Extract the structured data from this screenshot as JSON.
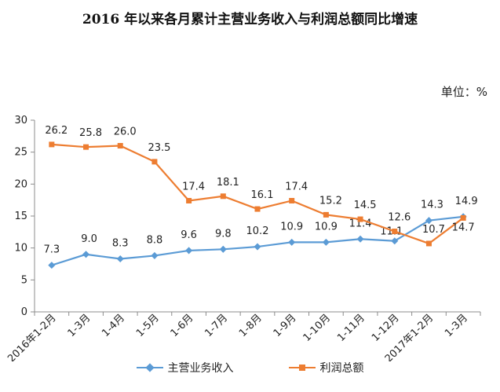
{
  "title": "2016 年以来各月累计主营业务收入与利润总额同比增速",
  "unit": "单位：%",
  "chart_data": {
    "type": "line",
    "categories": [
      "2016年1-2月",
      "1-3月",
      "1-4月",
      "1-5月",
      "1-6月",
      "1-7月",
      "1-8月",
      "1-9月",
      "1-10月",
      "1-11月",
      "1-12月",
      "2017年1-2月",
      "1-3月"
    ],
    "ylim": [
      0,
      30
    ],
    "yticks": [
      0,
      5,
      10,
      15,
      20,
      25,
      30
    ],
    "grid": false,
    "legend_position": "bottom",
    "series": [
      {
        "name": "主营业务收入",
        "color": "#5b9bd5",
        "marker": "diamond",
        "values": [
          7.3,
          9.0,
          8.3,
          8.8,
          9.6,
          9.8,
          10.2,
          10.9,
          10.9,
          11.4,
          11.1,
          14.3,
          14.9
        ],
        "labels": [
          "7.3",
          "9.0",
          "8.3",
          "8.8",
          "9.6",
          "9.8",
          "10.2",
          "10.9",
          "10.9",
          "11.4",
          "11.1",
          "14.3",
          "14.9"
        ]
      },
      {
        "name": "利润总额",
        "color": "#ed7d31",
        "marker": "square",
        "values": [
          26.2,
          25.8,
          26.0,
          23.5,
          17.4,
          18.1,
          16.1,
          17.4,
          15.2,
          14.5,
          12.6,
          10.7,
          14.7
        ],
        "labels": [
          "26.2",
          "25.8",
          "26.0",
          "23.5",
          "17.4",
          "18.1",
          "16.1",
          "17.4",
          "15.2",
          "14.5",
          "12.6",
          "10.7",
          "14.7"
        ]
      }
    ]
  }
}
